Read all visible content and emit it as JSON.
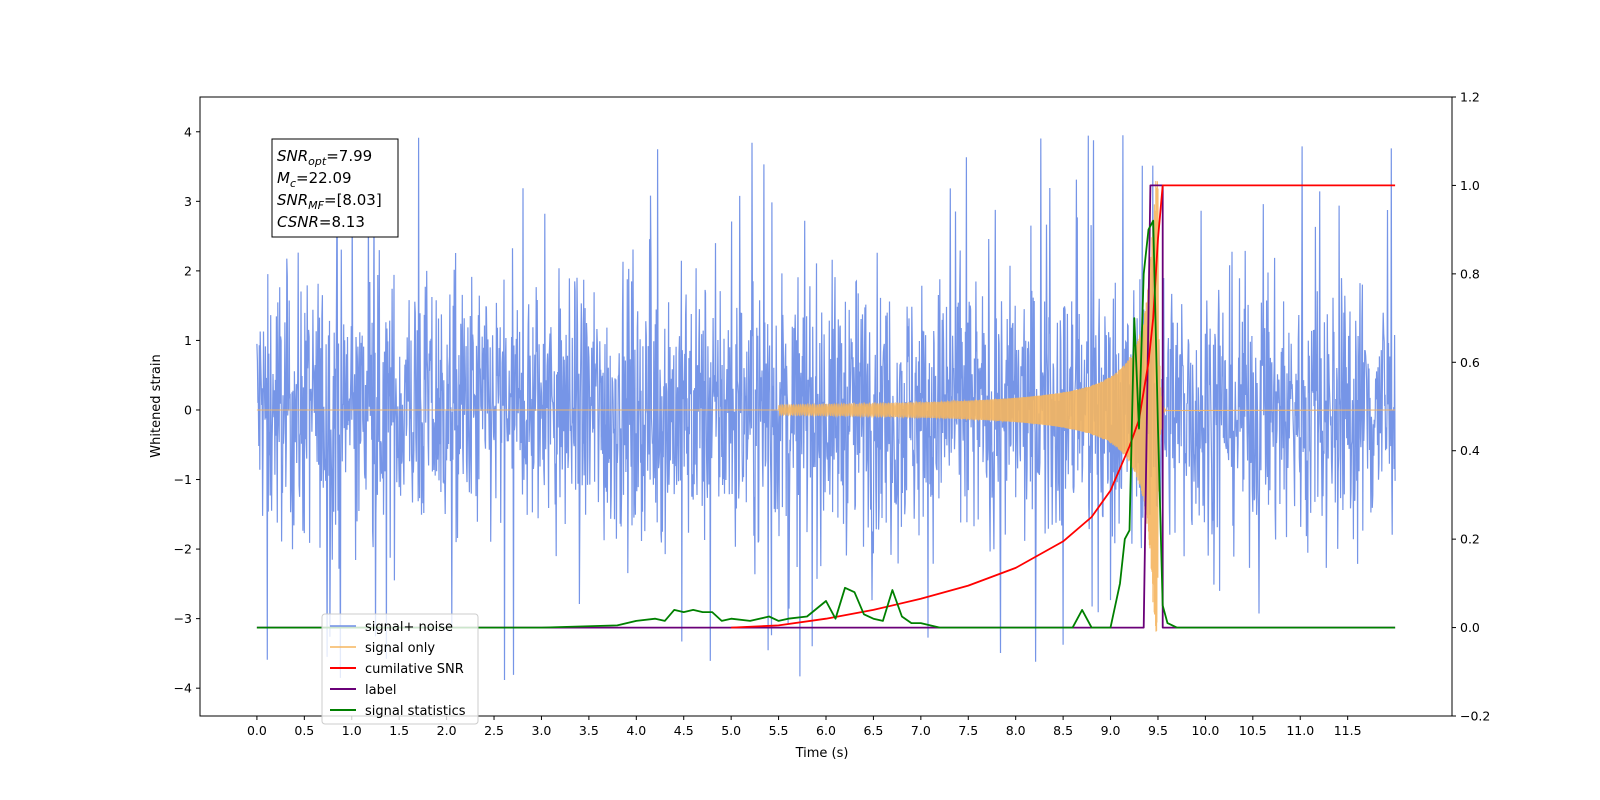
{
  "chart_data": {
    "type": "line",
    "xlabel": "Time (s)",
    "ylabel": "Whitened strain",
    "y2label": "",
    "xlim": [
      -0.6,
      12.6
    ],
    "ylim": [
      -4.4,
      4.5
    ],
    "y2lim": [
      -0.2,
      1.2
    ],
    "x_ticks": [
      "0.0",
      "0.5",
      "1.0",
      "1.5",
      "2.0",
      "2.5",
      "3.0",
      "3.5",
      "4.0",
      "4.5",
      "5.0",
      "5.5",
      "6.0",
      "6.5",
      "7.0",
      "7.5",
      "8.0",
      "8.5",
      "9.0",
      "9.5",
      "10.0",
      "10.5",
      "11.0",
      "11.5"
    ],
    "y_ticks": [
      "4",
      "3",
      "2",
      "1",
      "0",
      "−1",
      "−2",
      "−3",
      "−4"
    ],
    "y2_ticks": [
      "1.2",
      "1.0",
      "0.8",
      "0.6",
      "0.4",
      "0.2",
      "0.0",
      "−0.2"
    ],
    "legend_position": "lower-left",
    "grid": false,
    "annotation": [
      {
        "sym": "SNR",
        "sub": "opt",
        "rest": "=7.99"
      },
      {
        "sym": "M",
        "sub": "c",
        "rest": "=22.09"
      },
      {
        "sym": "SNR",
        "sub": "MF",
        "rest": "=[8.03]"
      },
      {
        "sym": "CSNR",
        "sub": "",
        "rest": "=8.13"
      }
    ],
    "series": [
      {
        "name": "signal+ noise",
        "axis": "left",
        "color": "#6f8fe6",
        "x_range": [
          0.0,
          12.0
        ],
        "peak_range": [
          -3.9,
          4.1
        ]
      },
      {
        "name": "signal only",
        "axis": "left",
        "color": "#f5b55f",
        "chirp_start": 5.5,
        "chirp_end": 9.5
      },
      {
        "name": "cumilative SNR",
        "axis": "right",
        "color": "#ff0000",
        "x": [
          5.0,
          5.5,
          6.0,
          6.5,
          7.0,
          7.5,
          8.0,
          8.5,
          8.8,
          9.0,
          9.2,
          9.3,
          9.4,
          9.45,
          9.5,
          9.55,
          12.0
        ],
        "values": [
          0.0,
          0.005,
          0.02,
          0.04,
          0.065,
          0.095,
          0.135,
          0.195,
          0.25,
          0.31,
          0.41,
          0.47,
          0.6,
          0.7,
          0.88,
          1.0,
          1.0
        ]
      },
      {
        "name": "label",
        "axis": "right",
        "color": "#6a0078",
        "x": [
          0.0,
          9.35,
          9.42,
          9.42,
          9.5,
          9.5,
          9.55,
          9.55,
          12.0
        ],
        "values": [
          0.0,
          0.0,
          1.0,
          1.0,
          1.0,
          1.0,
          1.0,
          0.0,
          0.0
        ]
      },
      {
        "name": "signal statistics",
        "axis": "right",
        "color": "#008000",
        "x": [
          0.0,
          3.0,
          3.8,
          4.0,
          4.2,
          4.3,
          4.4,
          4.5,
          4.6,
          4.7,
          4.8,
          4.9,
          5.0,
          5.2,
          5.4,
          5.5,
          5.6,
          5.8,
          6.0,
          6.1,
          6.2,
          6.3,
          6.4,
          6.5,
          6.6,
          6.7,
          6.8,
          6.9,
          7.0,
          7.2,
          7.5,
          8.0,
          8.6,
          8.7,
          8.8,
          9.0,
          9.1,
          9.15,
          9.2,
          9.25,
          9.3,
          9.35,
          9.4,
          9.45,
          9.5,
          9.55,
          9.6,
          9.7,
          10.0,
          12.0
        ],
        "values": [
          0.0,
          0.0,
          0.005,
          0.015,
          0.02,
          0.015,
          0.04,
          0.035,
          0.04,
          0.035,
          0.035,
          0.015,
          0.02,
          0.015,
          0.025,
          0.015,
          0.02,
          0.025,
          0.06,
          0.02,
          0.09,
          0.08,
          0.03,
          0.02,
          0.015,
          0.085,
          0.025,
          0.01,
          0.01,
          0.0,
          0.0,
          0.0,
          0.0,
          0.04,
          0.0,
          0.0,
          0.1,
          0.2,
          0.22,
          0.7,
          0.45,
          0.8,
          0.9,
          0.92,
          0.45,
          0.05,
          0.01,
          0.0,
          0.0,
          0.0
        ]
      }
    ]
  }
}
